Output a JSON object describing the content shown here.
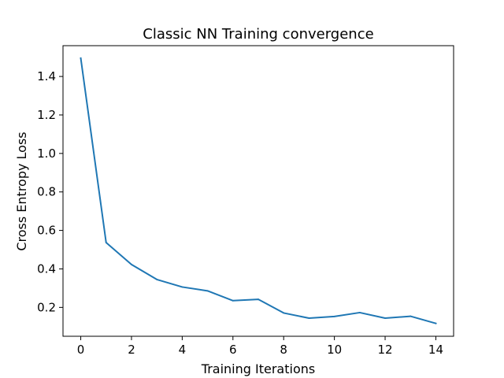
{
  "chart_data": {
    "type": "line",
    "title": "Classic NN Training convergence",
    "xlabel": "Training Iterations",
    "ylabel": "Cross Entropy Loss",
    "xlim": [
      -0.7,
      14.7
    ],
    "ylim": [
      0.05,
      1.56
    ],
    "xticks": [
      0,
      2,
      4,
      6,
      8,
      10,
      12,
      14
    ],
    "yticks": [
      0.2,
      0.4,
      0.6,
      0.8,
      1.0,
      1.2,
      1.4
    ],
    "xtick_labels": [
      "0",
      "2",
      "4",
      "6",
      "8",
      "10",
      "12",
      "14"
    ],
    "ytick_labels": [
      "0.2",
      "0.4",
      "0.6",
      "0.8",
      "1.0",
      "1.2",
      "1.4"
    ],
    "grid": false,
    "series": [
      {
        "color": "#1f77b4",
        "x": [
          0,
          1,
          2,
          3,
          4,
          5,
          6,
          7,
          8,
          9,
          10,
          11,
          12,
          13,
          14
        ],
        "values": [
          1.495,
          0.537,
          0.423,
          0.345,
          0.306,
          0.286,
          0.235,
          0.242,
          0.171,
          0.144,
          0.153,
          0.173,
          0.144,
          0.154,
          0.117
        ]
      }
    ]
  }
}
